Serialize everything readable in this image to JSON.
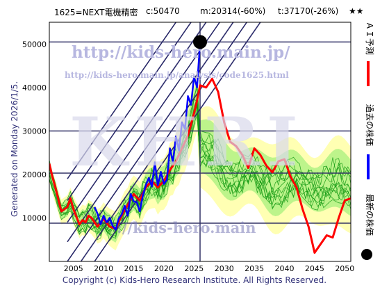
{
  "header": {
    "ticker": "1625=NEXT電機精密",
    "current": "c:50470",
    "min": "m:20314(-60%)",
    "target": "t:37170(-26%)",
    "rating": "★★"
  },
  "generated_label": "Generated on Monday 2026/1/5.",
  "copyright": "Copyright (c) Kids-Hero Research Institute. All Rights Reserved.",
  "watermarks": {
    "url_large": "http://kids-hero.main.jp/",
    "url_small": "http://kids-hero.main.jp/analysis/code1625.html",
    "big_text": "KHRI",
    "bottom_url": "://kids-hero.main"
  },
  "legend": [
    {
      "label": "ＡＩ予測",
      "color": "#ff0000"
    },
    {
      "label": "過去の株価",
      "color": "#0000ff"
    },
    {
      "label": "最新の株価",
      "color": "#000000"
    }
  ],
  "chart_data": {
    "type": "line",
    "title": "",
    "xlabel": "",
    "ylabel": "",
    "xlim": [
      2001,
      2051
    ],
    "ylim": [
      0,
      55000
    ],
    "x_ticks": [
      2005,
      2010,
      2015,
      2020,
      2025,
      2030,
      2035,
      2040,
      2045,
      2050
    ],
    "y_ticks": [
      10000,
      20000,
      30000,
      40000,
      50000
    ],
    "horizontal_lines": [
      8800,
      20314,
      30000,
      50470
    ],
    "latest_point": {
      "x": 2026.0,
      "y": 50470
    },
    "series": [
      {
        "name": "過去の株価",
        "color": "#0000ff",
        "x": [
          2008.5,
          2009.0,
          2009.5,
          2010.0,
          2010.5,
          2011.0,
          2011.5,
          2012.0,
          2012.5,
          2013.0,
          2013.5,
          2014.0,
          2014.5,
          2015.0,
          2015.5,
          2016.0,
          2016.5,
          2017.0,
          2017.5,
          2018.0,
          2018.5,
          2019.0,
          2019.5,
          2020.0,
          2020.5,
          2021.0,
          2021.5,
          2022.0,
          2022.5,
          2023.0,
          2023.5,
          2024.0,
          2024.5,
          2025.0,
          2025.5,
          2026.0
        ],
        "y": [
          12500,
          11000,
          8500,
          10500,
          9000,
          10000,
          8200,
          7300,
          9800,
          10800,
          12800,
          10500,
          15500,
          13800,
          13600,
          11500,
          15000,
          17500,
          19200,
          17200,
          22800,
          17500,
          20600,
          17800,
          18800,
          26000,
          22800,
          28800,
          25500,
          32000,
          30500,
          38000,
          36000,
          42500,
          40000,
          50470
        ]
      },
      {
        "name": "ＡＩ予測",
        "color": "#ff0000",
        "x": [
          2001.0,
          2001.5,
          2002.0,
          2003.0,
          2004.0,
          2004.5,
          2005.0,
          2006.0,
          2006.5,
          2007.0,
          2007.5,
          2008.0,
          2009.0,
          2010.0,
          2011.0,
          2012.0,
          2013.0,
          2014.0,
          2015.0,
          2016.0,
          2017.0,
          2018.0,
          2019.0,
          2020.0,
          2021.0,
          2022.0,
          2023.0,
          2024.0,
          2025.0,
          2025.5,
          2026.0,
          2027.0,
          2028.0,
          2029.0,
          2030.0,
          2031.0,
          2032.0,
          2033.0,
          2034.0,
          2035.0,
          2036.0,
          2037.0,
          2038.0,
          2039.0,
          2040.0,
          2041.0,
          2042.0,
          2043.0,
          2044.0,
          2045.0,
          2046.0,
          2047.0,
          2048.0,
          2049.0,
          2050.0,
          2051.0
        ],
        "y": [
          22500,
          19500,
          17000,
          11500,
          12500,
          14500,
          12000,
          8500,
          9500,
          9000,
          10500,
          10000,
          8000,
          9800,
          8000,
          7500,
          10500,
          13000,
          15500,
          14000,
          17000,
          18500,
          17000,
          18500,
          21000,
          23000,
          26000,
          29000,
          34000,
          37000,
          40500,
          40000,
          42000,
          39000,
          32000,
          27500,
          26500,
          24500,
          21500,
          26000,
          24500,
          22000,
          20500,
          23000,
          23500,
          19500,
          17000,
          12000,
          8000,
          2000,
          4000,
          6000,
          5500,
          10000,
          14000,
          14500
        ]
      }
    ]
  }
}
